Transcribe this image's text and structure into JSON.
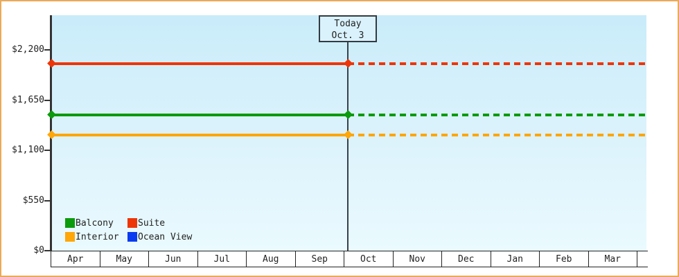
{
  "frame": {
    "border_color": "#EBA95B",
    "background": "#FFFFFF"
  },
  "plot": {
    "bg_gradient_top": "#C9ECFA",
    "bg_gradient_bottom": "#EAFAFE",
    "axis_color": "#333333"
  },
  "today_box": {
    "line1": "Today",
    "line2": "Oct. 3"
  },
  "y_axis": {
    "ticks": [
      {
        "label": "$2,200",
        "value": 2200
      },
      {
        "label": "$1,650",
        "value": 1650
      },
      {
        "label": "$1,100",
        "value": 1100
      },
      {
        "label": "$550",
        "value": 550
      },
      {
        "label": "$0",
        "value": 0
      }
    ]
  },
  "x_axis": {
    "months": [
      "Apr",
      "May",
      "Jun",
      "Jul",
      "Aug",
      "Sep",
      "Oct",
      "Nov",
      "Dec",
      "Jan",
      "Feb",
      "Mar"
    ]
  },
  "legend": {
    "items": [
      {
        "label": "Balcony",
        "color": "#0C9B0C"
      },
      {
        "label": "Suite",
        "color": "#EE3508"
      },
      {
        "label": "Interior",
        "color": "#FFA608"
      },
      {
        "label": "Ocean View",
        "color": "#0B3BF0"
      }
    ]
  },
  "chart_data": {
    "type": "line",
    "title": "",
    "x_categories": [
      "Apr",
      "May",
      "Jun",
      "Jul",
      "Aug",
      "Sep",
      "Oct",
      "Nov",
      "Dec",
      "Jan",
      "Feb",
      "Mar"
    ],
    "ylim": [
      0,
      2200
    ],
    "y_tick_values": [
      0,
      550,
      1100,
      1650,
      2200
    ],
    "grid": false,
    "legend_position": "bottom-left inside plot",
    "today": {
      "label": "Today",
      "date": "Oct. 3",
      "position_between": [
        "Sep",
        "Oct"
      ]
    },
    "series": [
      {
        "name": "Suite",
        "color": "#EE3508",
        "value": 2050,
        "visible": true,
        "style": "solid before today, dashed after, diamond markers at axis and today"
      },
      {
        "name": "Balcony",
        "color": "#0C9B0C",
        "value": 1490,
        "visible": true,
        "style": "solid before today, dashed after, diamond markers at axis and today"
      },
      {
        "name": "Interior",
        "color": "#FFA608",
        "value": 1270,
        "visible": true,
        "style": "solid before today, dashed after, diamond markers at axis and today"
      },
      {
        "name": "Ocean View",
        "color": "#0B3BF0",
        "value": null,
        "visible": false,
        "style": "in legend only, no visible line"
      }
    ]
  }
}
